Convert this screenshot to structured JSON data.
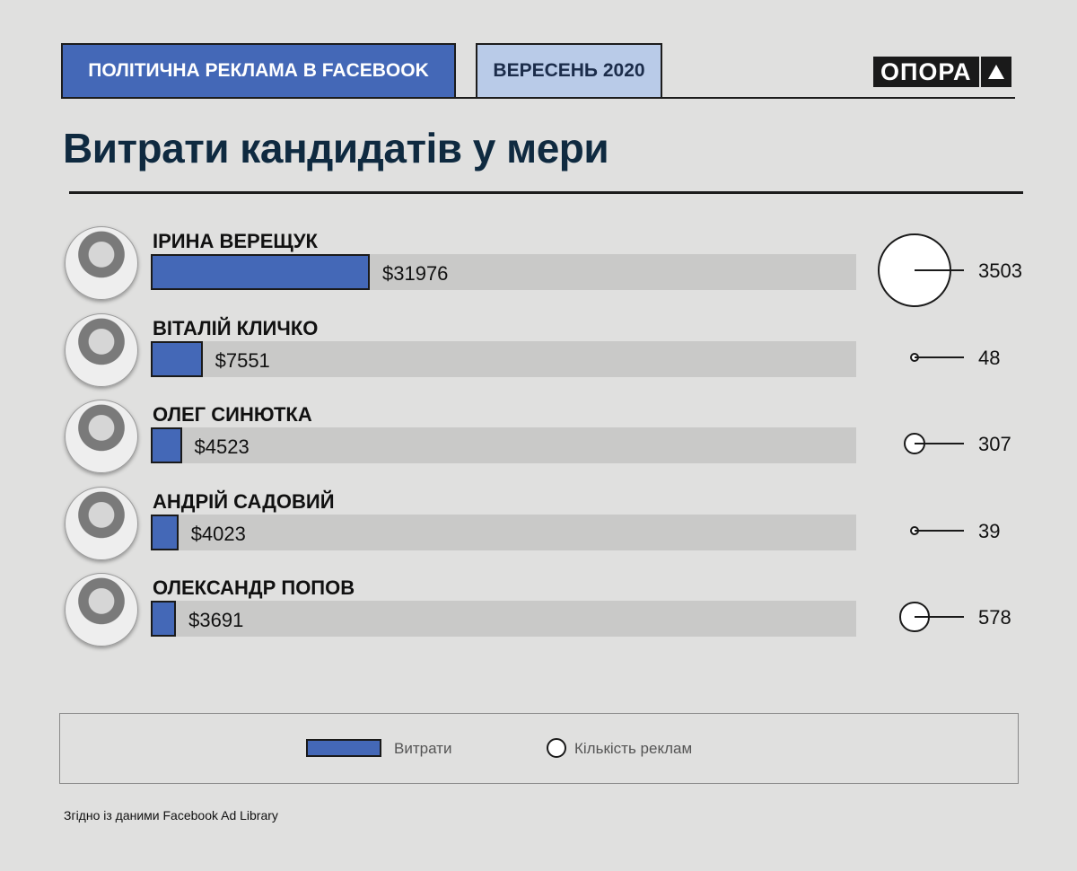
{
  "header": {
    "tag_primary": "ПОЛІТИЧНА РЕКЛАМА В FACEBOOK",
    "tag_date": "ВЕРЕСЕНЬ 2020",
    "logo_text": "ОПОРА"
  },
  "colors": {
    "background": "#e0e0df",
    "bar": "#4468b7",
    "track": "#c9c9c8",
    "title": "#0f2a40",
    "date_tag": "#b9cbe8"
  },
  "chart_data": {
    "type": "bar",
    "title": "Витрати кандидатів у мери",
    "categories": [
      "ІРИНА ВЕРЕЩУК",
      "ВІТАЛІЙ КЛИЧКО",
      "ОЛЕГ СИНЮТКА",
      "АНДРІЙ САДОВИЙ",
      "ОЛЕКСАНДР ПОПОВ"
    ],
    "series": [
      {
        "name": "Витрати",
        "values": [
          31976,
          7551,
          4523,
          4023,
          3691
        ],
        "labels": [
          "$31976",
          "$7551",
          "$4523",
          "$4023",
          "$3691"
        ]
      },
      {
        "name": "Кількість реклам",
        "values": [
          3503,
          48,
          307,
          39,
          578
        ],
        "labels": [
          "3503",
          "48",
          "307",
          "39",
          "578"
        ]
      }
    ],
    "xlim": [
      0,
      103000
    ],
    "legend": "bottom"
  },
  "legend": {
    "bar_label": "Витрати",
    "circle_label": "Кількість реклам"
  },
  "source": "Згідно із даними Facebook Ad Library"
}
